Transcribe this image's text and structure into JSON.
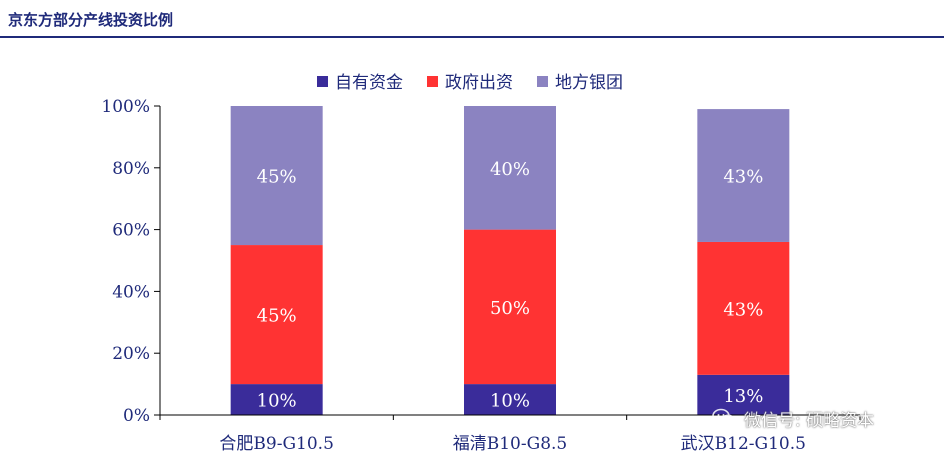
{
  "page": {
    "title": "京东方部分产线投资比例"
  },
  "chart_data": {
    "type": "bar",
    "stacked": true,
    "categories": [
      "合肥B9-G10.5",
      "福清B10-G8.5",
      "武汉B12-G10.5"
    ],
    "series": [
      {
        "name": "自有资金",
        "values": [
          10,
          10,
          13
        ],
        "labels": [
          "10%",
          "10%",
          "13%"
        ],
        "color": "#3a2c9a",
        "text_color": "#ffffff"
      },
      {
        "name": "政府出资",
        "values": [
          45,
          50,
          43
        ],
        "labels": [
          "45%",
          "50%",
          "43%"
        ],
        "color": "#ff3333",
        "text_color": "#ffffff"
      },
      {
        "name": "地方银团",
        "values": [
          45,
          40,
          43
        ],
        "labels": [
          "45%",
          "40%",
          "43%"
        ],
        "color": "#8b83c1",
        "text_color": "#ffffff"
      }
    ],
    "ylim": [
      0,
      100
    ],
    "yticks": [
      0,
      20,
      40,
      60,
      80,
      100
    ],
    "ytick_labels": [
      "0%",
      "20%",
      "40%",
      "60%",
      "80%",
      "100%"
    ],
    "legend_position": "top",
    "grid": false,
    "xlabel": "",
    "ylabel": ""
  },
  "watermark": {
    "text": "微信号: 硕略资本",
    "icon": "wechat-icon"
  }
}
